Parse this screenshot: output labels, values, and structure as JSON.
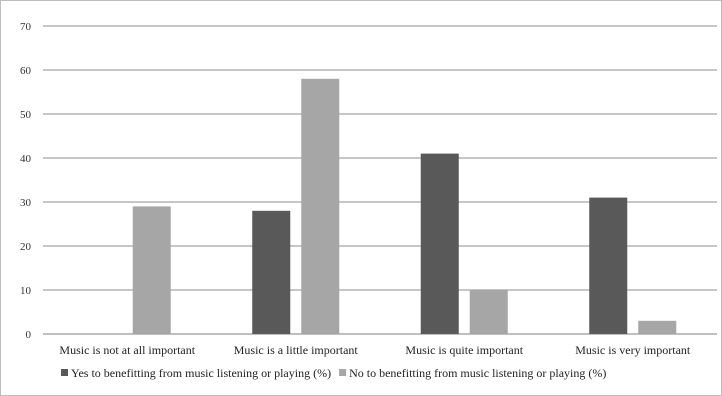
{
  "chart_data": {
    "type": "bar",
    "categories": [
      "Music is not at all important",
      "Music is a little important",
      "Music is quite important",
      "Music is very important"
    ],
    "series": [
      {
        "name": "Yes to benefitting from music listening or playing (%)",
        "color": "#595959",
        "values": [
          0,
          28,
          41,
          31
        ]
      },
      {
        "name": "No to benefitting from music listening or playing (%)",
        "color": "#a6a6a6",
        "values": [
          29,
          58,
          10,
          3
        ]
      }
    ],
    "title": "",
    "xlabel": "",
    "ylabel": "",
    "ylim": [
      0,
      70
    ],
    "yticks": [
      0,
      10,
      20,
      30,
      40,
      50,
      60,
      70
    ],
    "grid": true,
    "legend_position": "bottom"
  }
}
